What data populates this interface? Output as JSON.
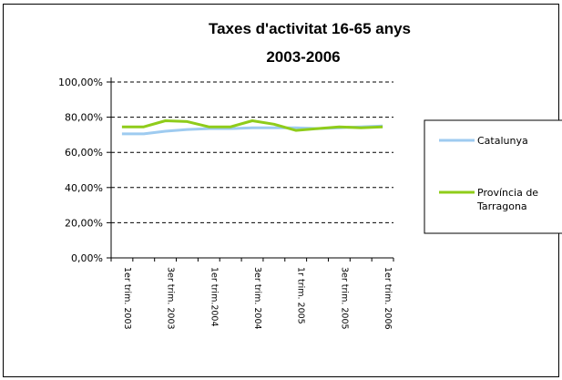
{
  "chart_data": {
    "type": "line",
    "title": [
      "Taxes d'activitat 16-65 anys",
      "2003-2006"
    ],
    "xlabel": "",
    "ylabel": "",
    "ylim": [
      0,
      100
    ],
    "yticks": [
      "100,00%",
      "80,00%",
      "60,00%",
      "40,00%",
      "20,00%",
      "0,00%"
    ],
    "ytick_values": [
      100,
      80,
      60,
      40,
      20,
      0
    ],
    "grid": "horizontal dashed",
    "legend": "right",
    "x_tick_labels": [
      "1er trim. 2003",
      "3er trim. 2003",
      "1er trim.2004",
      "3er trim. 2004",
      "1r trim. 2005",
      "3er trim. 2005",
      "1er trim. 2006"
    ],
    "n_periods": 13,
    "series": [
      {
        "name": "Catalunya",
        "color": "#9ecbf0",
        "values": [
          70.5,
          70.5,
          72,
          73,
          73.5,
          73.5,
          74,
          74,
          74,
          73.5,
          74,
          74.5,
          75
        ]
      },
      {
        "name": "Província de Tarragona",
        "name_lines": [
          "Província de",
          "Tarragona"
        ],
        "color": "#8fcc1a",
        "values": [
          74.5,
          74.5,
          78,
          77.5,
          74.5,
          74.5,
          78,
          76,
          72.5,
          73.5,
          74.5,
          74,
          74.5
        ]
      }
    ]
  }
}
